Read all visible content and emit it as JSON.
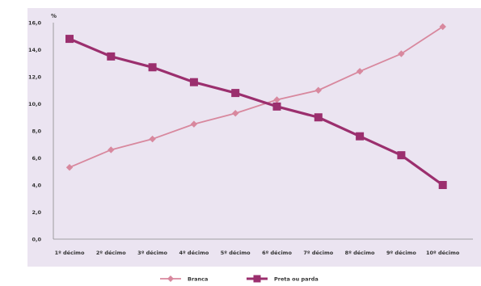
{
  "chart_data": {
    "type": "line",
    "unit_label": "%",
    "categories": [
      "1º décimo",
      "2º décimo",
      "3º décimo",
      "4º décimo",
      "5º décimo",
      "6º décimo",
      "7º décimo",
      "8º décimo",
      "9º décimo",
      "10º décimo"
    ],
    "y_ticks": [
      "0,0",
      "2,0",
      "4,0",
      "6,0",
      "8,0",
      "10,0",
      "12,0",
      "14,0",
      "16,0"
    ],
    "ylim": [
      0,
      16
    ],
    "grid": false,
    "legend_position": "bottom",
    "series": [
      {
        "name": "Branca",
        "color": "#d8889e",
        "marker": "diamond",
        "values": [
          5.3,
          6.6,
          7.4,
          8.5,
          9.3,
          10.3,
          11.0,
          12.4,
          13.7,
          15.7
        ]
      },
      {
        "name": "Preta ou parda",
        "color": "#9b2f6e",
        "marker": "square",
        "values": [
          14.8,
          13.5,
          12.7,
          11.6,
          10.8,
          9.8,
          9.0,
          7.6,
          6.2,
          4.0
        ]
      }
    ]
  }
}
